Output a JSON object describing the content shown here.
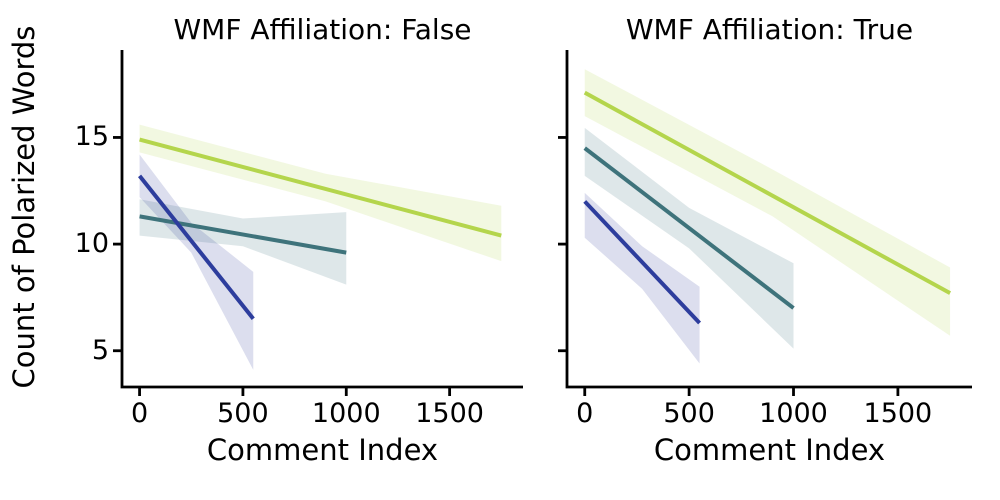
{
  "figure": {
    "ylabel": "Count of Polarized Words"
  },
  "chart_data": [
    {
      "type": "line",
      "title": "WMF Affiliation: False",
      "xlabel": "Comment Index",
      "ylabel": "Count of Polarized Words",
      "xlim": [
        -85,
        1855
      ],
      "ylim": [
        3.3,
        19.1
      ],
      "xticks": [
        0,
        500,
        1000,
        1500
      ],
      "xticklabels": [
        "0",
        "500",
        "1000",
        "1500"
      ],
      "yticks": [
        5,
        10,
        15
      ],
      "yticklabels": [
        "5",
        "10",
        "15"
      ],
      "grid": false,
      "legend": "none",
      "series": [
        {
          "name": "series-teal",
          "color": "#3e737b",
          "x": [
            0,
            1000
          ],
          "y": [
            11.3,
            9.6
          ],
          "ci": {
            "x": [
              0,
              500,
              1000
            ],
            "lo": [
              10.4,
              9.9,
              8.1
            ],
            "hi": [
              12.1,
              11.2,
              11.5
            ]
          }
        },
        {
          "name": "series-blue",
          "color": "#2d3d9d",
          "x": [
            0,
            550
          ],
          "y": [
            13.2,
            6.5
          ],
          "ci": {
            "x": [
              0,
              250,
              550
            ],
            "lo": [
              12.2,
              9.6,
              4.1
            ],
            "hi": [
              14.2,
              11.0,
              8.7
            ]
          }
        },
        {
          "name": "series-green",
          "color": "#b4d54c",
          "x": [
            0,
            1750
          ],
          "y": [
            14.9,
            10.4
          ],
          "ci": {
            "x": [
              0,
              900,
              1750
            ],
            "lo": [
              14.3,
              12.0,
              9.2
            ],
            "hi": [
              15.6,
              13.3,
              11.8
            ]
          }
        }
      ]
    },
    {
      "type": "line",
      "title": "WMF Affiliation: True",
      "xlabel": "Comment Index",
      "ylabel": "Count of Polarized Words",
      "xlim": [
        -85,
        1855
      ],
      "ylim": [
        3.3,
        19.1
      ],
      "xticks": [
        0,
        500,
        1000,
        1500
      ],
      "xticklabels": [
        "0",
        "500",
        "1000",
        "1500"
      ],
      "yticks": [
        5,
        10,
        15
      ],
      "yticklabels": [],
      "grid": false,
      "legend": "none",
      "series": [
        {
          "name": "series-teal",
          "color": "#3e737b",
          "x": [
            0,
            1000
          ],
          "y": [
            14.5,
            7.0
          ],
          "ci": {
            "x": [
              0,
              500,
              1000
            ],
            "lo": [
              13.2,
              9.8,
              5.1
            ],
            "hi": [
              15.45,
              11.7,
              9.1
            ]
          }
        },
        {
          "name": "series-blue",
          "color": "#2d3d9d",
          "x": [
            0,
            550
          ],
          "y": [
            12.0,
            6.3
          ],
          "ci": {
            "x": [
              0,
              275,
              550
            ],
            "lo": [
              10.3,
              7.9,
              4.4
            ],
            "hi": [
              12.4,
              9.9,
              8.0
            ]
          }
        },
        {
          "name": "series-green",
          "color": "#b4d54c",
          "x": [
            0,
            1750
          ],
          "y": [
            17.1,
            7.7
          ],
          "ci": {
            "x": [
              0,
              900,
              1750
            ],
            "lo": [
              16.0,
              11.3,
              5.7
            ],
            "hi": [
              18.2,
              13.5,
              8.9
            ]
          }
        }
      ]
    }
  ]
}
